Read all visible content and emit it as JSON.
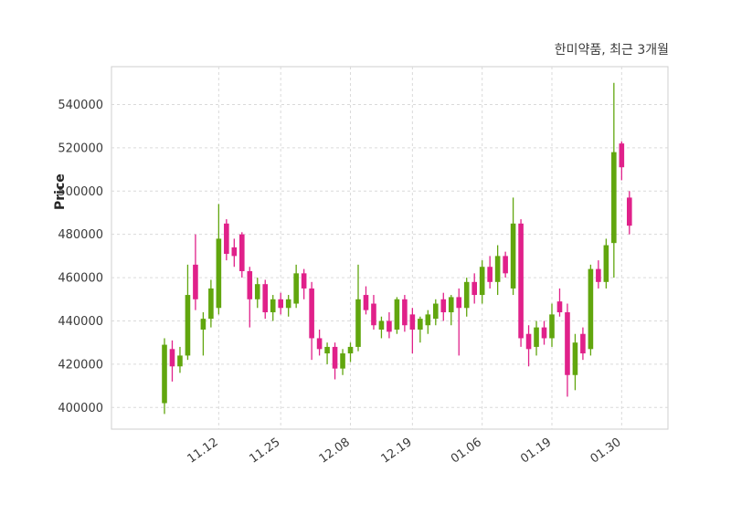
{
  "header": {
    "title": "한미약품, 최근 3개월"
  },
  "chart_data": {
    "type": "candlestick",
    "title": "한미약품, 최근 3개월",
    "xlabel": "",
    "ylabel": "Price",
    "ylim": [
      390000,
      557500
    ],
    "yticks": [
      400000,
      420000,
      440000,
      460000,
      480000,
      500000,
      520000,
      540000
    ],
    "xtick_labels": [
      "11.12",
      "11.25",
      "12.08",
      "12.19",
      "01.06",
      "01.19",
      "01.30"
    ],
    "xtick_indices": [
      7,
      15,
      24,
      32,
      41,
      50,
      59
    ],
    "grid": true,
    "legend": false,
    "up_color": "#61a60e",
    "down_color": "#e0218a",
    "grid_color": "#dadada",
    "axis_text_color": "#3a3a3a",
    "plot_bg_color": "#ffffff",
    "candles_ohlc": [
      [
        402000,
        432000,
        397000,
        429000
      ],
      [
        427000,
        431000,
        412000,
        419000
      ],
      [
        419000,
        428000,
        416000,
        424000
      ],
      [
        424000,
        466000,
        422000,
        452000
      ],
      [
        466000,
        480000,
        445000,
        450000
      ],
      [
        436000,
        444000,
        424000,
        441000
      ],
      [
        441000,
        459000,
        437000,
        455000
      ],
      [
        446000,
        494000,
        443000,
        478000
      ],
      [
        485000,
        487000,
        468000,
        471000
      ],
      [
        474000,
        478000,
        465000,
        470000
      ],
      [
        480000,
        481000,
        460000,
        463000
      ],
      [
        463000,
        465000,
        437000,
        450000
      ],
      [
        450000,
        460000,
        446000,
        457000
      ],
      [
        457000,
        459000,
        441000,
        444000
      ],
      [
        444000,
        452000,
        440000,
        450000
      ],
      [
        450000,
        453000,
        443000,
        446000
      ],
      [
        446000,
        452000,
        442000,
        450000
      ],
      [
        448000,
        466000,
        446000,
        462000
      ],
      [
        462000,
        464000,
        450000,
        455000
      ],
      [
        455000,
        458000,
        422000,
        432000
      ],
      [
        432000,
        436000,
        424000,
        427000
      ],
      [
        425000,
        430000,
        420000,
        428000
      ],
      [
        428000,
        430000,
        413000,
        418000
      ],
      [
        418000,
        427000,
        415000,
        425000
      ],
      [
        425000,
        430000,
        421000,
        428000
      ],
      [
        428000,
        466000,
        426000,
        450000
      ],
      [
        452000,
        456000,
        443000,
        445000
      ],
      [
        448000,
        452000,
        436000,
        438000
      ],
      [
        436000,
        442000,
        432000,
        440000
      ],
      [
        440000,
        444000,
        432000,
        435000
      ],
      [
        436000,
        451000,
        434000,
        450000
      ],
      [
        450000,
        452000,
        435000,
        438000
      ],
      [
        443000,
        446000,
        425000,
        436000
      ],
      [
        436000,
        442000,
        430000,
        441000
      ],
      [
        438000,
        445000,
        434000,
        443000
      ],
      [
        441000,
        450000,
        438000,
        448000
      ],
      [
        450000,
        453000,
        440000,
        444000
      ],
      [
        444000,
        452000,
        438000,
        451000
      ],
      [
        451000,
        455000,
        424000,
        446000
      ],
      [
        446000,
        460000,
        442000,
        458000
      ],
      [
        458000,
        462000,
        448000,
        452000
      ],
      [
        452000,
        468000,
        448000,
        465000
      ],
      [
        465000,
        470000,
        455000,
        458000
      ],
      [
        458000,
        475000,
        452000,
        470000
      ],
      [
        470000,
        472000,
        460000,
        462000
      ],
      [
        455000,
        497000,
        452000,
        485000
      ],
      [
        485000,
        487000,
        428000,
        432000
      ],
      [
        434000,
        438000,
        419000,
        427000
      ],
      [
        428000,
        440000,
        424000,
        437000
      ],
      [
        437000,
        440000,
        429000,
        432000
      ],
      [
        432000,
        448000,
        428000,
        443000
      ],
      [
        449000,
        455000,
        442000,
        444000
      ],
      [
        444000,
        448000,
        405000,
        415000
      ],
      [
        415000,
        434000,
        408000,
        430000
      ],
      [
        434000,
        437000,
        422000,
        425000
      ],
      [
        427000,
        466000,
        424000,
        464000
      ],
      [
        464000,
        468000,
        455000,
        458000
      ],
      [
        458000,
        478000,
        455000,
        475000
      ],
      [
        476000,
        550000,
        460000,
        518000
      ],
      [
        522000,
        523000,
        505000,
        511000
      ],
      [
        497000,
        500000,
        480000,
        484000
      ]
    ]
  }
}
